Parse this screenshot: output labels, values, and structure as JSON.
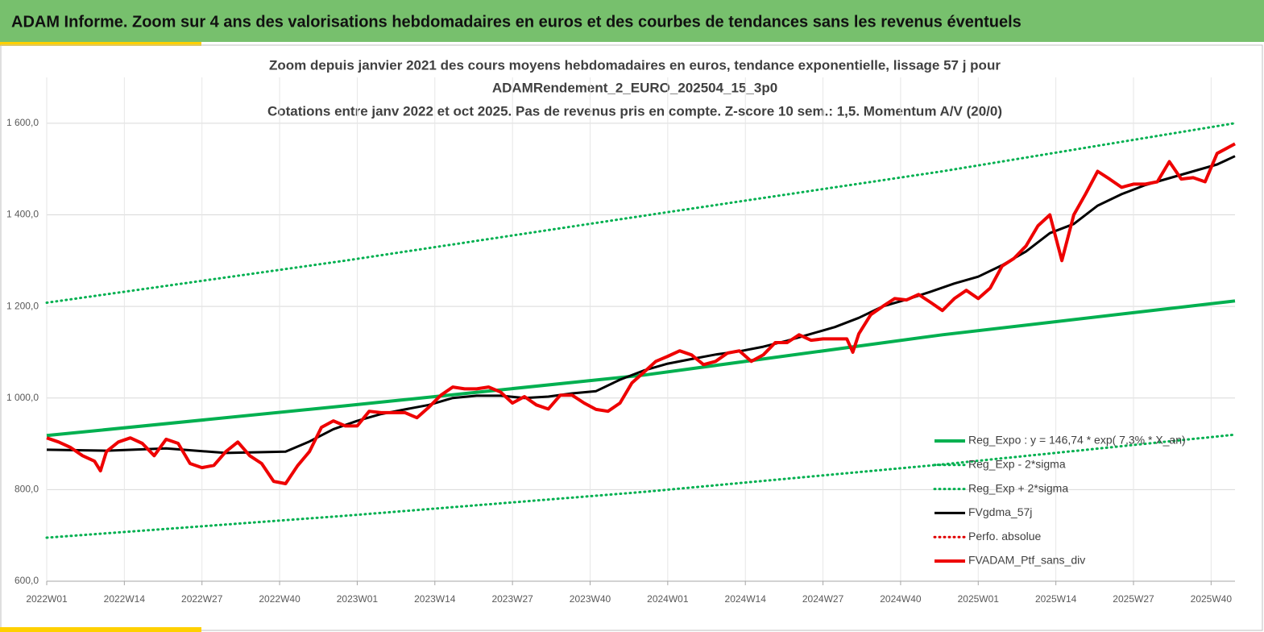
{
  "header_title": "ADAM Informe. Zoom sur 4 ans des valorisations hebdomadaires en euros et des courbes de tendances sans les revenus éventuels",
  "chart_data": {
    "type": "line",
    "title": [
      "Zoom depuis janvier 2021 des cours moyens hebdomadaires  en euros, tendance exponentielle, lissage 57 j pour",
      "ADAMRendement_2_EURO_202504_15_3p0",
      "Cotations  entre janv 2022 et oct 2025. Pas de revenus pris en compte. Z-score 10 sem.: 1,5. Momentum A/V (20/0)"
    ],
    "xlim": [
      0,
      199
    ],
    "xticks": [
      {
        "value": 0,
        "label": "2022W01"
      },
      {
        "value": 13,
        "label": "2022W14"
      },
      {
        "value": 26,
        "label": "2022W27"
      },
      {
        "value": 39,
        "label": "2022W40"
      },
      {
        "value": 52,
        "label": "2023W01"
      },
      {
        "value": 65,
        "label": "2023W14"
      },
      {
        "value": 78,
        "label": "2023W27"
      },
      {
        "value": 91,
        "label": "2023W40"
      },
      {
        "value": 104,
        "label": "2024W01"
      },
      {
        "value": 117,
        "label": "2024W14"
      },
      {
        "value": 130,
        "label": "2024W27"
      },
      {
        "value": 143,
        "label": "2024W40"
      },
      {
        "value": 156,
        "label": "2025W01"
      },
      {
        "value": 169,
        "label": "2025W14"
      },
      {
        "value": 182,
        "label": "2025W27"
      },
      {
        "value": 195,
        "label": "2025W40"
      }
    ],
    "ylim": [
      600,
      1700
    ],
    "yticks": [
      {
        "value": 600,
        "label": "600,0"
      },
      {
        "value": 800,
        "label": "800,0"
      },
      {
        "value": 1000,
        "label": "1 000,0"
      },
      {
        "value": 1200,
        "label": "1 200,0"
      },
      {
        "value": 1400,
        "label": "1 400,0"
      },
      {
        "value": 1600,
        "label": "1 600,0"
      }
    ],
    "grid": true,
    "legend": "lower right",
    "series": [
      {
        "name": "Reg_Expo : y = 146,74 * exp( 7,3% * X_an)",
        "color": "#00b050",
        "style": "solid",
        "x": [
          0,
          50,
          100,
          150,
          199
        ],
        "values": [
          918,
          983,
          1050,
          1138,
          1212
        ]
      },
      {
        "name": "Reg_Exp - 2*sigma",
        "color": "#00b050",
        "style": "dotted",
        "x": [
          0,
          50,
          100,
          150,
          199
        ],
        "values": [
          695,
          743,
          795,
          855,
          920
        ]
      },
      {
        "name": "Reg_Exp + 2*sigma",
        "color": "#00b050",
        "style": "dotted",
        "x": [
          0,
          50,
          100,
          150,
          199
        ],
        "values": [
          1208,
          1300,
          1398,
          1495,
          1600
        ]
      },
      {
        "name": "FVgdma_57j",
        "color": "#000000",
        "style": "solid",
        "x": [
          0,
          10,
          20,
          30,
          40,
          44,
          48,
          52,
          56,
          60,
          64,
          68,
          72,
          76,
          80,
          84,
          88,
          92,
          96,
          100,
          104,
          108,
          112,
          116,
          120,
          124,
          128,
          132,
          136,
          140,
          144,
          148,
          152,
          156,
          160,
          164,
          168,
          172,
          176,
          180,
          184,
          188,
          192,
          196,
          199
        ],
        "values": [
          887,
          885,
          890,
          880,
          883,
          905,
          932,
          950,
          965,
          975,
          985,
          1000,
          1005,
          1005,
          1000,
          1003,
          1010,
          1015,
          1040,
          1060,
          1075,
          1085,
          1095,
          1102,
          1112,
          1125,
          1140,
          1155,
          1175,
          1200,
          1215,
          1232,
          1250,
          1265,
          1290,
          1320,
          1360,
          1380,
          1420,
          1445,
          1465,
          1480,
          1495,
          1510,
          1528
        ]
      },
      {
        "name": "Perfo. absolue",
        "color": "#e00000",
        "style": "dotted",
        "x": [],
        "values": []
      },
      {
        "name": "FVADAM_Ptf_sans_div",
        "color": "#ee0000",
        "style": "solid",
        "x": [
          0,
          2,
          4,
          6,
          8,
          9,
          10,
          12,
          14,
          16,
          18,
          20,
          22,
          24,
          26,
          28,
          30,
          32,
          34,
          36,
          38,
          40,
          42,
          44,
          46,
          48,
          50,
          52,
          54,
          56,
          58,
          60,
          62,
          64,
          66,
          68,
          70,
          72,
          74,
          76,
          78,
          80,
          82,
          84,
          86,
          88,
          90,
          92,
          94,
          96,
          98,
          100,
          102,
          104,
          106,
          108,
          110,
          112,
          114,
          116,
          118,
          120,
          122,
          124,
          126,
          128,
          130,
          132,
          134,
          135,
          136,
          138,
          140,
          142,
          144,
          146,
          148,
          150,
          152,
          154,
          156,
          158,
          160,
          162,
          164,
          166,
          168,
          170,
          172,
          174,
          176,
          178,
          180,
          182,
          184,
          186,
          188,
          190,
          192,
          194,
          196,
          198,
          199
        ],
        "values": [
          913,
          904,
          892,
          874,
          862,
          841,
          883,
          904,
          913,
          901,
          874,
          910,
          901,
          857,
          848,
          853,
          883,
          904,
          874,
          857,
          818,
          813,
          852,
          883,
          936,
          950,
          939,
          939,
          971,
          968,
          968,
          968,
          957,
          980,
          1006,
          1024,
          1020,
          1020,
          1024,
          1013,
          989,
          1003,
          985,
          976,
          1006,
          1006,
          989,
          975,
          971,
          989,
          1033,
          1056,
          1080,
          1091,
          1103,
          1094,
          1073,
          1080,
          1098,
          1103,
          1080,
          1094,
          1121,
          1121,
          1138,
          1126,
          1129,
          1129,
          1129,
          1100,
          1140,
          1182,
          1200,
          1217,
          1214,
          1226,
          1209,
          1191,
          1217,
          1235,
          1217,
          1240,
          1288,
          1305,
          1332,
          1376,
          1400,
          1300,
          1400,
          1446,
          1495,
          1478,
          1460,
          1467,
          1467,
          1472,
          1516,
          1478,
          1481,
          1472,
          1534,
          1548,
          1555
        ]
      }
    ]
  }
}
